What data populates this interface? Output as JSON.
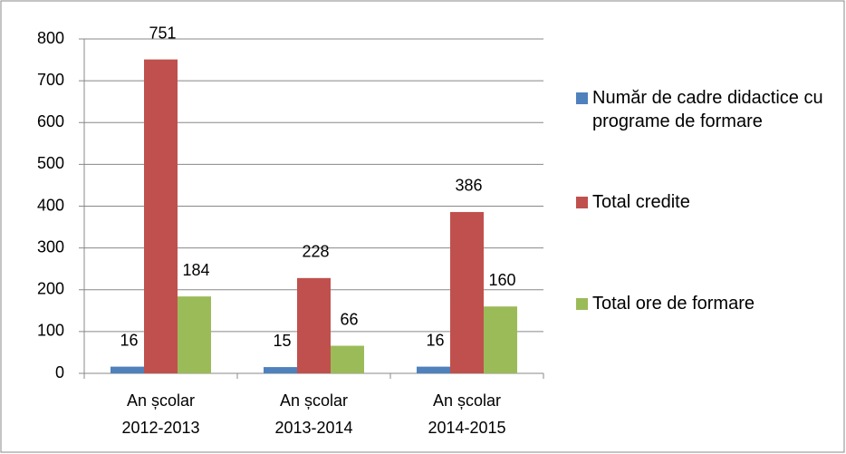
{
  "chart_data": {
    "type": "bar",
    "categories": [
      "An școlar 2012-2013",
      "An școlar 2013-2014",
      "An școlar 2014-2015"
    ],
    "series": [
      {
        "name": "Număr de cadre didactice cu programe de formare",
        "color": "#4f81bd",
        "values": [
          16,
          15,
          16
        ]
      },
      {
        "name": "Total credite",
        "color": "#c0504d",
        "values": [
          751,
          228,
          386
        ]
      },
      {
        "name": "Total ore de formare",
        "color": "#9bbb59",
        "values": [
          184,
          66,
          160
        ]
      }
    ],
    "ylim": [
      0,
      800
    ],
    "yticks": [
      0,
      100,
      200,
      300,
      400,
      500,
      600,
      700,
      800
    ],
    "grid": true,
    "legend": "right"
  }
}
